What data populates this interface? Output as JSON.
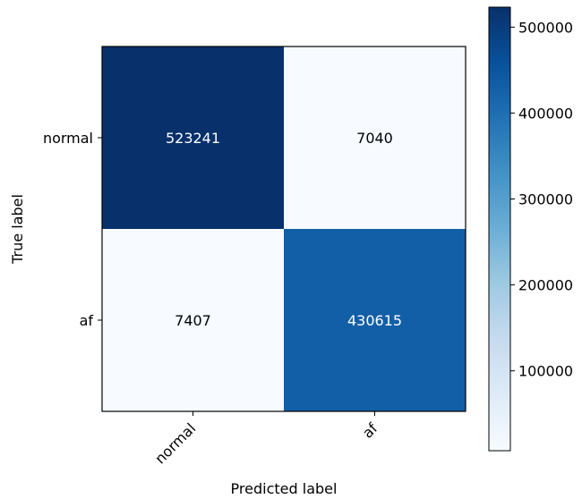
{
  "chart_data": {
    "type": "heatmap",
    "xlabel": "Predicted label",
    "ylabel": "True label",
    "x_categories": [
      "normal",
      "af"
    ],
    "y_categories": [
      "normal",
      "af"
    ],
    "values": [
      [
        523241,
        7040
      ],
      [
        7407,
        430615
      ]
    ],
    "colormap": "Blues",
    "vmin": 7040,
    "vmax": 523241,
    "colorbar_ticks": [
      100000,
      200000,
      300000,
      400000,
      500000
    ],
    "colorbar_tick_labels": [
      "100000",
      "200000",
      "300000",
      "400000",
      "500000"
    ],
    "colorbar_placement": "right",
    "grid": false
  }
}
